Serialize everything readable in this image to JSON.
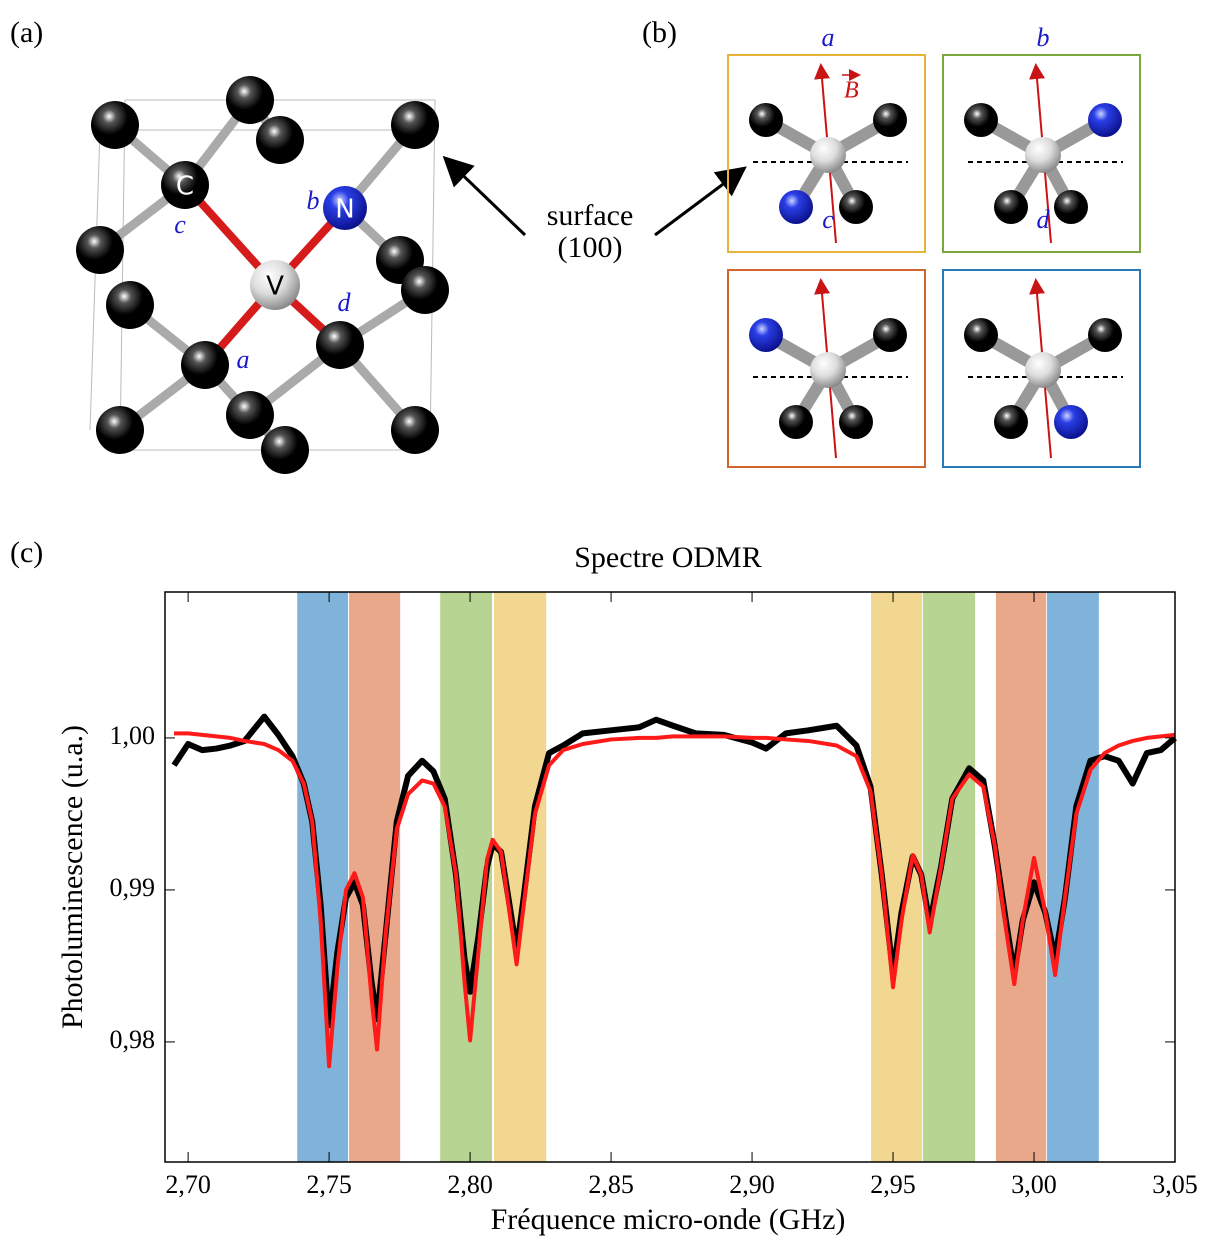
{
  "panel_a": {
    "label": "(a)",
    "atoms": [
      "C",
      "N",
      "V"
    ],
    "sites": [
      "a",
      "b",
      "c",
      "d"
    ]
  },
  "panel_b": {
    "label": "(b)",
    "orientations": [
      "a",
      "b",
      "c",
      "d"
    ],
    "field": "B",
    "surface": [
      "surface",
      "(100)"
    ]
  },
  "chart_data": {
    "type": "line",
    "label": "(c)",
    "title": "Spectre ODMR",
    "x_label": "Fréquence micro-onde (GHz)",
    "y_label": "Photoluminescence (u.a.)",
    "xlim": [
      2.6918,
      3.05
    ],
    "ylim": [
      0.9721,
      1.0096
    ],
    "xticks": [
      {
        "value": 2.7,
        "label": "2,70"
      },
      {
        "value": 2.75,
        "label": "2,75"
      },
      {
        "value": 2.8,
        "label": "2,80"
      },
      {
        "value": 2.85,
        "label": "2,85"
      },
      {
        "value": 2.9,
        "label": "2,90"
      },
      {
        "value": 2.95,
        "label": "2,95"
      },
      {
        "value": 3.0,
        "label": "3,00"
      },
      {
        "value": 3.05,
        "label": "3,05"
      }
    ],
    "yticks": [
      {
        "value": 0.98,
        "label": "0,98"
      },
      {
        "value": 0.99,
        "label": "0,99"
      },
      {
        "value": 1.0,
        "label": "1,00"
      }
    ],
    "bands": [
      {
        "from": 2.7387,
        "to": 2.7567,
        "color": "#7fb3d9"
      },
      {
        "from": 2.7571,
        "to": 2.7752,
        "color": "#eaa88a"
      },
      {
        "from": 2.7894,
        "to": 2.8078,
        "color": "#b8d493"
      },
      {
        "from": 2.8085,
        "to": 2.827,
        "color": "#f2d790"
      },
      {
        "from": 2.9422,
        "to": 2.9603,
        "color": "#f2d790"
      },
      {
        "from": 2.9606,
        "to": 2.9791,
        "color": "#b8d493"
      },
      {
        "from": 2.9865,
        "to": 3.0043,
        "color": "#eaa88a"
      },
      {
        "from": 3.0046,
        "to": 3.023,
        "color": "#7fb3d9"
      }
    ],
    "x": [
      2.695,
      2.7,
      2.705,
      2.71,
      2.715,
      2.72,
      2.727,
      2.732,
      2.737,
      2.741,
      2.744,
      2.747,
      2.75,
      2.753,
      2.756,
      2.759,
      2.762,
      2.765,
      2.767,
      2.77,
      2.774,
      2.778,
      2.783,
      2.787,
      2.791,
      2.795,
      2.798,
      2.8,
      2.803,
      2.806,
      2.808,
      2.811,
      2.814,
      2.8165,
      2.819,
      2.823,
      2.828,
      2.833,
      2.84,
      2.85,
      2.86,
      2.866,
      2.872,
      2.88,
      2.89,
      2.9,
      2.905,
      2.912,
      2.92,
      2.93,
      2.937,
      2.942,
      2.946,
      2.95,
      2.953,
      2.957,
      2.96,
      2.963,
      2.967,
      2.971,
      2.977,
      2.982,
      2.986,
      2.99,
      2.993,
      2.996,
      3.0,
      3.004,
      3.0075,
      3.011,
      3.015,
      3.02,
      3.025,
      3.03,
      3.035,
      3.04,
      3.045,
      3.05
    ],
    "series": [
      {
        "color": "#000000",
        "values": [
          0.9982,
          0.9996,
          0.9992,
          0.9993,
          0.9995,
          0.9998,
          1.0014,
          1.0002,
          0.9988,
          0.997,
          0.9945,
          0.989,
          0.9811,
          0.986,
          0.9895,
          0.9905,
          0.989,
          0.984,
          0.9815,
          0.987,
          0.9945,
          0.9975,
          0.9985,
          0.9978,
          0.996,
          0.991,
          0.9855,
          0.9833,
          0.987,
          0.9915,
          0.993,
          0.9925,
          0.989,
          0.986,
          0.9895,
          0.9955,
          0.999,
          0.9995,
          1.0003,
          1.0005,
          1.0007,
          1.0012,
          1.0008,
          1.0003,
          1.0002,
          0.9997,
          0.9993,
          1.0003,
          1.0005,
          1.0008,
          0.9995,
          0.9968,
          0.991,
          0.9845,
          0.9885,
          0.9922,
          0.991,
          0.9878,
          0.9915,
          0.996,
          0.998,
          0.9972,
          0.993,
          0.988,
          0.9845,
          0.988,
          0.9905,
          0.9885,
          0.9855,
          0.9895,
          0.9955,
          0.9985,
          0.9988,
          0.9985,
          0.997,
          0.999,
          0.9992,
          1.0
        ]
      },
      {
        "color": "#ff1a1a",
        "values": [
          1.0003,
          1.0003,
          1.0002,
          1.0001,
          1.0,
          0.9998,
          0.9996,
          0.9992,
          0.9985,
          0.997,
          0.9945,
          0.988,
          0.9784,
          0.985,
          0.99,
          0.9911,
          0.9895,
          0.983,
          0.9795,
          0.987,
          0.994,
          0.9963,
          0.9972,
          0.997,
          0.9955,
          0.991,
          0.984,
          0.9801,
          0.986,
          0.992,
          0.9933,
          0.9925,
          0.9885,
          0.9851,
          0.989,
          0.995,
          0.9982,
          0.9992,
          0.9996,
          0.9999,
          1.0,
          1.0,
          1.0001,
          1.0001,
          1.0001,
          1.0,
          1.0,
          0.9999,
          0.9998,
          0.9995,
          0.9988,
          0.9965,
          0.991,
          0.9836,
          0.988,
          0.9923,
          0.991,
          0.9872,
          0.9915,
          0.996,
          0.9976,
          0.9968,
          0.993,
          0.9875,
          0.9838,
          0.988,
          0.9921,
          0.9885,
          0.9844,
          0.9895,
          0.995,
          0.9979,
          0.999,
          0.9995,
          0.9998,
          1.0,
          1.0001,
          1.0002
        ]
      }
    ]
  }
}
